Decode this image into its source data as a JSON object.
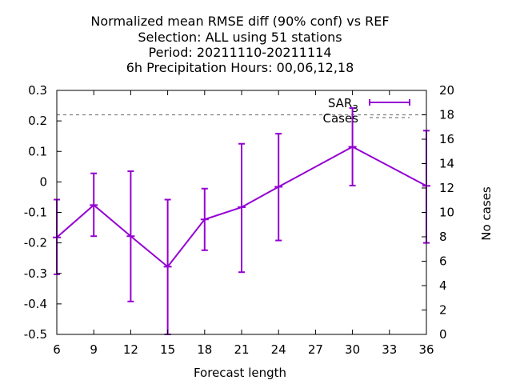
{
  "chart_data": {
    "type": "line",
    "title_lines": [
      "Normalized mean RMSE diff (90% conf) vs REF",
      "Selection: ALL using    51 stations",
      "Period: 20211110-20211114",
      "6h Precipitation   Hours:  00,06,12,18"
    ],
    "xlabel": "Forecast length",
    "ylabel_right": "No cases",
    "x_ticks": [
      6,
      9,
      12,
      15,
      18,
      21,
      24,
      27,
      30,
      33,
      36
    ],
    "y_ticks": [
      0.3,
      0.2,
      0.1,
      0,
      -0.1,
      -0.2,
      -0.3,
      -0.4,
      -0.5
    ],
    "y_tick_labels": [
      "0.3",
      "0.2",
      "0.1",
      "0",
      "-0.1",
      "-0.2",
      "-0.3",
      "-0.4",
      "-0.5"
    ],
    "y2_ticks": [
      20,
      18,
      16,
      14,
      12,
      10,
      8,
      6,
      4,
      2,
      0
    ],
    "xlim": [
      6,
      36
    ],
    "ylim": [
      -0.5,
      0.3
    ],
    "y2lim": [
      0,
      20
    ],
    "series": [
      {
        "name": "SAR",
        "name_subscript": "3",
        "color": "#9400d3",
        "x": [
          6,
          9,
          12,
          15,
          18,
          21,
          24,
          30,
          36
        ],
        "y": [
          -0.182,
          -0.076,
          -0.178,
          -0.278,
          -0.123,
          -0.083,
          -0.016,
          0.115,
          -0.013
        ],
        "err_low": [
          -0.303,
          -0.178,
          -0.392,
          -0.5,
          -0.224,
          -0.296,
          -0.192,
          -0.012,
          -0.2
        ],
        "err_high": [
          -0.058,
          0.028,
          0.035,
          -0.058,
          -0.022,
          0.125,
          0.158,
          0.242,
          0.168
        ]
      }
    ],
    "cases": {
      "name": "Cases",
      "color": "#808080",
      "value": 18
    },
    "legend_position": "top-right",
    "grid": false
  }
}
